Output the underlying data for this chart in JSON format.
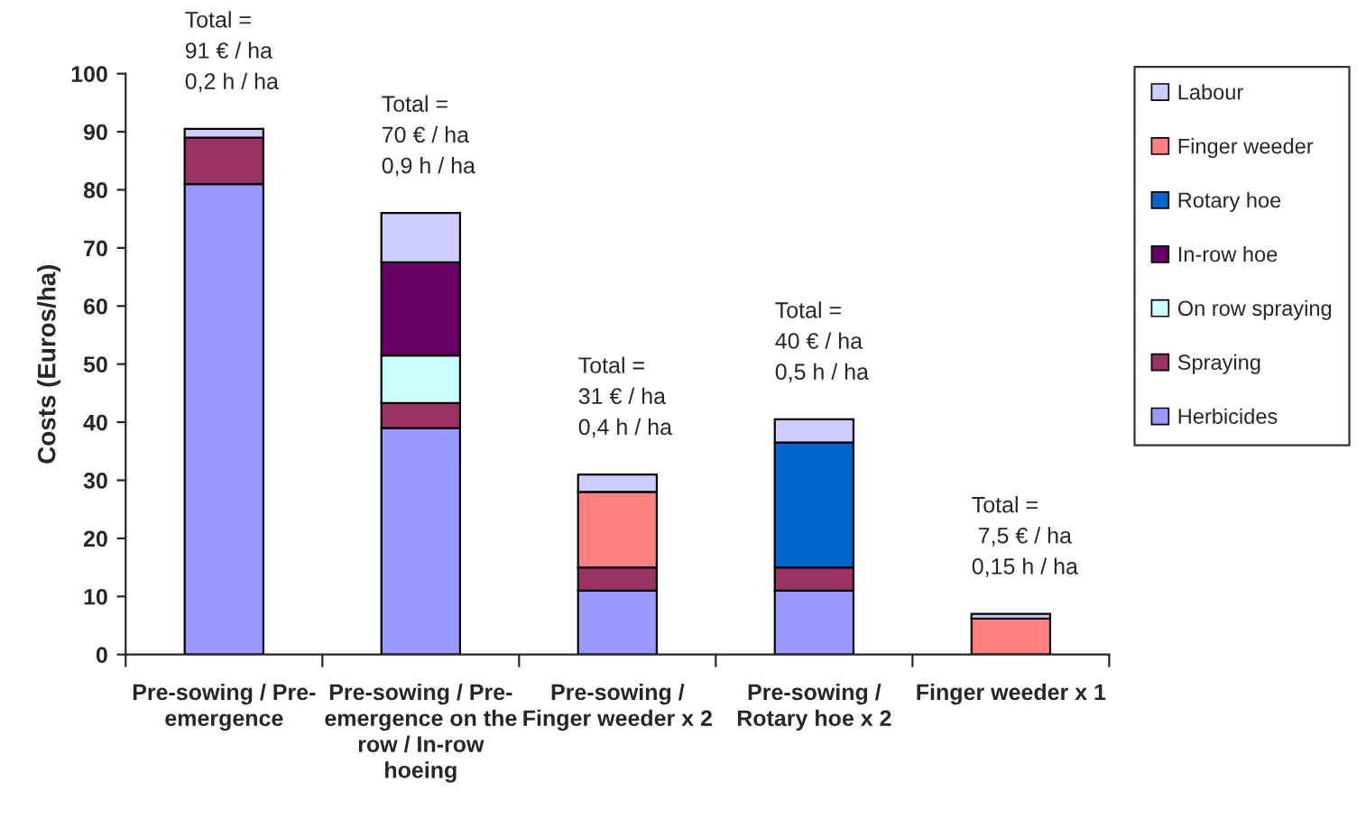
{
  "chart_data": {
    "type": "bar",
    "stacked": true,
    "ylabel": "Costs (Euros/ha)",
    "categories": [
      "Pre-sowing / Pre-emergence",
      "Pre-sowing / Pre-emergence on the row / In-row hoeing",
      "Pre-sowing / Finger weeder x 2",
      "Pre-sowing / Rotary hoe x 2",
      "Finger weeder x 1"
    ],
    "series": [
      {
        "name": "Herbicides",
        "color": "#9999ff",
        "values": [
          81,
          39,
          11,
          11,
          null
        ]
      },
      {
        "name": "Spraying",
        "color": "#993366",
        "values": [
          8,
          4.3,
          4,
          4,
          null
        ]
      },
      {
        "name": "On row spraying",
        "color": "#ccffff",
        "values": [
          null,
          8.2,
          null,
          null,
          null
        ]
      },
      {
        "name": "In-row hoe",
        "color": "#660066",
        "values": [
          null,
          16,
          null,
          null,
          null
        ]
      },
      {
        "name": "Rotary hoe",
        "color": "#0066cc",
        "values": [
          null,
          null,
          null,
          21.5,
          null
        ]
      },
      {
        "name": "Finger weeder",
        "color": "#ff8080",
        "values": [
          null,
          null,
          13,
          null,
          6.2
        ]
      },
      {
        "name": "Labour",
        "color": "#ccccff",
        "values": [
          1.5,
          8.5,
          3,
          4,
          0.8
        ]
      }
    ],
    "totals": [
      "Total =\n91 € / ha\n0,2 h / ha",
      "Total =\n70 € / ha\n0,9 h / ha",
      "Total =\n31 € / ha\n0,4 h / ha",
      "Total =\n40 € / ha\n0,5 h / ha",
      "Total =\n 7,5 € / ha\n0,15 h / ha"
    ],
    "ylim": [
      0,
      100
    ],
    "yticks": [
      0,
      10,
      20,
      30,
      40,
      50,
      60,
      70,
      80,
      90,
      100
    ],
    "grid": false,
    "legend": "top right"
  }
}
